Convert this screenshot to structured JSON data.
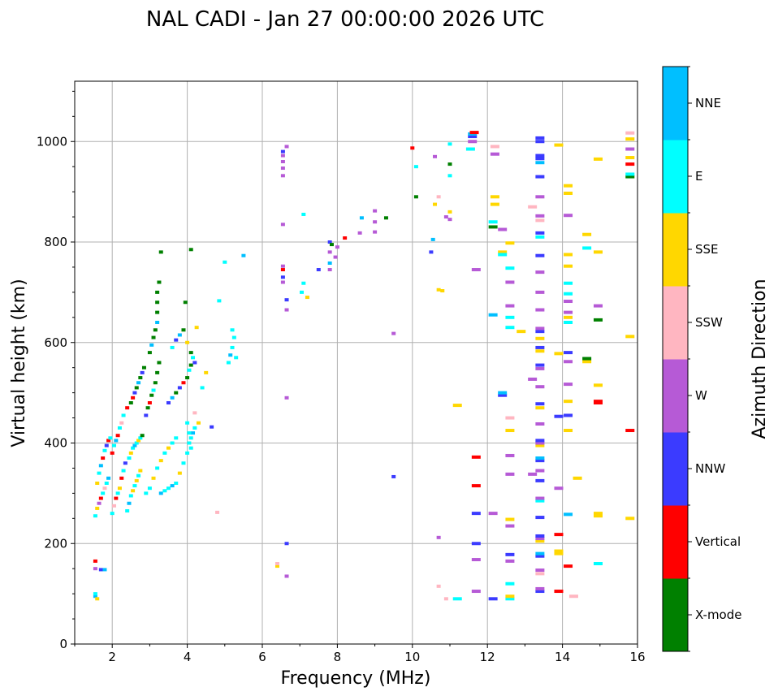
{
  "chart_data": {
    "type": "scatter",
    "title": "NAL CADI - Jan 27 00:00:00 2026 UTC",
    "xlabel": "Frequency (MHz)",
    "ylabel": "Virtual height (km)",
    "xlim": [
      1,
      16
    ],
    "ylim": [
      0,
      1120
    ],
    "xticks": [
      2,
      4,
      6,
      8,
      10,
      12,
      14,
      16
    ],
    "yticks": [
      0,
      200,
      400,
      600,
      800,
      1000
    ],
    "grid": true,
    "colorbar": {
      "label": "Azimuth Direction",
      "categories": [
        {
          "name": "X-mode",
          "color": "#008000"
        },
        {
          "name": "Vertical",
          "color": "#ff0000"
        },
        {
          "name": "NNW",
          "color": "#3b3bff"
        },
        {
          "name": "W",
          "color": "#b65ad6"
        },
        {
          "name": "SSW",
          "color": "#ffb6c1"
        },
        {
          "name": "SSE",
          "color": "#ffd700"
        },
        {
          "name": "E",
          "color": "#00ffff"
        },
        {
          "name": "NNE",
          "color": "#00bfff"
        }
      ]
    },
    "point_count_note": "columns [freq MHz, height km, category index]",
    "points": [
      [
        1.55,
        95,
        7
      ],
      [
        1.55,
        100,
        6
      ],
      [
        1.6,
        90,
        5
      ],
      [
        1.55,
        150,
        3
      ],
      [
        1.55,
        165,
        1
      ],
      [
        1.7,
        148,
        2
      ],
      [
        1.8,
        148,
        7
      ],
      [
        1.55,
        255,
        6
      ],
      [
        1.6,
        270,
        5
      ],
      [
        1.65,
        280,
        3
      ],
      [
        1.7,
        290,
        1
      ],
      [
        1.75,
        300,
        6
      ],
      [
        1.8,
        310,
        4
      ],
      [
        1.85,
        320,
        6
      ],
      [
        1.9,
        330,
        7
      ],
      [
        1.6,
        320,
        5
      ],
      [
        1.65,
        340,
        6
      ],
      [
        1.7,
        355,
        7
      ],
      [
        1.75,
        370,
        1
      ],
      [
        1.8,
        385,
        6
      ],
      [
        1.85,
        395,
        2
      ],
      [
        1.9,
        405,
        1
      ],
      [
        1.95,
        410,
        6
      ],
      [
        2.0,
        260,
        6
      ],
      [
        2.05,
        275,
        4
      ],
      [
        2.1,
        290,
        1
      ],
      [
        2.15,
        300,
        6
      ],
      [
        2.2,
        310,
        5
      ],
      [
        2.25,
        330,
        1
      ],
      [
        2.3,
        345,
        6
      ],
      [
        2.35,
        360,
        2
      ],
      [
        2.0,
        380,
        1
      ],
      [
        2.05,
        395,
        6
      ],
      [
        2.1,
        405,
        7
      ],
      [
        2.15,
        415,
        1
      ],
      [
        2.2,
        430,
        6
      ],
      [
        2.25,
        440,
        4
      ],
      [
        2.3,
        455,
        6
      ],
      [
        2.4,
        470,
        1
      ],
      [
        2.4,
        265,
        6
      ],
      [
        2.45,
        280,
        7
      ],
      [
        2.5,
        295,
        6
      ],
      [
        2.55,
        305,
        5
      ],
      [
        2.6,
        315,
        6
      ],
      [
        2.65,
        325,
        5
      ],
      [
        2.7,
        335,
        6
      ],
      [
        2.75,
        345,
        5
      ],
      [
        2.45,
        370,
        6
      ],
      [
        2.5,
        380,
        5
      ],
      [
        2.55,
        390,
        6
      ],
      [
        2.6,
        395,
        7
      ],
      [
        2.65,
        400,
        6
      ],
      [
        2.7,
        405,
        5
      ],
      [
        2.75,
        410,
        6
      ],
      [
        2.8,
        415,
        0
      ],
      [
        2.5,
        480,
        0
      ],
      [
        2.55,
        490,
        1
      ],
      [
        2.6,
        500,
        2
      ],
      [
        2.65,
        510,
        0
      ],
      [
        2.7,
        520,
        7
      ],
      [
        2.75,
        530,
        0
      ],
      [
        2.8,
        540,
        2
      ],
      [
        2.85,
        550,
        0
      ],
      [
        2.9,
        455,
        2
      ],
      [
        2.95,
        470,
        0
      ],
      [
        3.0,
        480,
        1
      ],
      [
        3.05,
        495,
        0
      ],
      [
        3.1,
        505,
        6
      ],
      [
        3.15,
        520,
        0
      ],
      [
        3.2,
        540,
        0
      ],
      [
        3.25,
        560,
        0
      ],
      [
        3.0,
        580,
        0
      ],
      [
        3.05,
        595,
        7
      ],
      [
        3.1,
        610,
        0
      ],
      [
        3.15,
        625,
        0
      ],
      [
        3.2,
        640,
        7
      ],
      [
        3.2,
        660,
        0
      ],
      [
        3.2,
        680,
        0
      ],
      [
        3.2,
        700,
        0
      ],
      [
        3.25,
        720,
        0
      ],
      [
        3.3,
        780,
        0
      ],
      [
        2.9,
        300,
        6
      ],
      [
        3.0,
        310,
        6
      ],
      [
        3.1,
        330,
        5
      ],
      [
        3.2,
        350,
        6
      ],
      [
        3.3,
        365,
        5
      ],
      [
        3.4,
        380,
        6
      ],
      [
        3.5,
        390,
        5
      ],
      [
        3.6,
        400,
        6
      ],
      [
        3.7,
        410,
        6
      ],
      [
        3.3,
        300,
        7
      ],
      [
        3.4,
        305,
        6
      ],
      [
        3.5,
        310,
        6
      ],
      [
        3.6,
        315,
        7
      ],
      [
        3.7,
        320,
        6
      ],
      [
        3.8,
        340,
        5
      ],
      [
        3.9,
        360,
        6
      ],
      [
        4.0,
        380,
        6
      ],
      [
        3.5,
        480,
        2
      ],
      [
        3.6,
        490,
        7
      ],
      [
        3.7,
        500,
        0
      ],
      [
        3.8,
        510,
        2
      ],
      [
        3.9,
        520,
        1
      ],
      [
        4.0,
        530,
        0
      ],
      [
        4.05,
        545,
        6
      ],
      [
        4.1,
        555,
        0
      ],
      [
        3.6,
        590,
        6
      ],
      [
        3.7,
        605,
        2
      ],
      [
        3.8,
        615,
        7
      ],
      [
        3.9,
        625,
        0
      ],
      [
        4.0,
        600,
        5
      ],
      [
        4.1,
        580,
        0
      ],
      [
        4.15,
        570,
        6
      ],
      [
        3.95,
        680,
        0
      ],
      [
        4.1,
        785,
        0
      ],
      [
        4.05,
        400,
        6
      ],
      [
        4.1,
        410,
        6
      ],
      [
        4.15,
        420,
        7
      ],
      [
        4.2,
        430,
        6
      ],
      [
        4.0,
        440,
        6
      ],
      [
        4.05,
        420,
        6
      ],
      [
        4.1,
        390,
        6
      ],
      [
        4.3,
        440,
        5
      ],
      [
        4.2,
        460,
        4
      ],
      [
        4.2,
        560,
        2
      ],
      [
        4.25,
        630,
        5
      ],
      [
        4.4,
        510,
        6
      ],
      [
        4.5,
        540,
        5
      ],
      [
        4.65,
        432,
        2
      ],
      [
        4.8,
        262,
        4
      ],
      [
        4.85,
        683,
        6
      ],
      [
        5.0,
        760,
        6
      ],
      [
        5.5,
        773,
        7
      ],
      [
        5.1,
        560,
        6
      ],
      [
        5.15,
        575,
        7
      ],
      [
        5.2,
        590,
        6
      ],
      [
        5.25,
        610,
        6
      ],
      [
        5.3,
        570,
        6
      ],
      [
        5.2,
        625,
        6
      ],
      [
        6.4,
        155,
        5
      ],
      [
        6.4,
        160,
        4
      ],
      [
        6.65,
        135,
        3
      ],
      [
        6.65,
        200,
        2
      ],
      [
        6.65,
        490,
        3
      ],
      [
        6.55,
        720,
        3
      ],
      [
        6.55,
        730,
        2
      ],
      [
        6.55,
        745,
        1
      ],
      [
        6.55,
        752,
        3
      ],
      [
        6.65,
        665,
        3
      ],
      [
        6.65,
        685,
        2
      ],
      [
        6.55,
        835,
        3
      ],
      [
        6.55,
        932,
        3
      ],
      [
        6.55,
        947,
        3
      ],
      [
        6.55,
        960,
        3
      ],
      [
        6.55,
        972,
        3
      ],
      [
        6.55,
        980,
        2
      ],
      [
        6.65,
        990,
        3
      ],
      [
        7.05,
        700,
        6
      ],
      [
        7.1,
        718,
        6
      ],
      [
        7.1,
        855,
        6
      ],
      [
        7.2,
        690,
        5
      ],
      [
        7.5,
        745,
        2
      ],
      [
        7.8,
        745,
        3
      ],
      [
        7.8,
        758,
        7
      ],
      [
        7.8,
        780,
        3
      ],
      [
        7.8,
        800,
        2
      ],
      [
        7.85,
        795,
        0
      ],
      [
        7.95,
        770,
        3
      ],
      [
        8.0,
        790,
        3
      ],
      [
        8.2,
        808,
        1
      ],
      [
        8.6,
        818,
        3
      ],
      [
        8.65,
        848,
        7
      ],
      [
        9.0,
        820,
        3
      ],
      [
        9.0,
        840,
        3
      ],
      [
        9.0,
        862,
        3
      ],
      [
        9.3,
        848,
        0
      ],
      [
        9.5,
        618,
        3
      ],
      [
        9.5,
        333,
        2
      ],
      [
        10.0,
        987,
        1
      ],
      [
        10.1,
        890,
        0
      ],
      [
        10.1,
        950,
        6
      ],
      [
        10.5,
        780,
        2
      ],
      [
        10.55,
        805,
        7
      ],
      [
        10.6,
        875,
        5
      ],
      [
        10.6,
        970,
        3
      ],
      [
        10.7,
        890,
        4
      ],
      [
        10.7,
        705,
        5
      ],
      [
        10.8,
        703,
        5
      ],
      [
        10.9,
        850,
        3
      ],
      [
        11.0,
        845,
        3
      ],
      [
        11.0,
        860,
        5
      ],
      [
        11.0,
        932,
        6
      ],
      [
        11.0,
        955,
        0
      ],
      [
        11.0,
        995,
        6
      ],
      [
        11.2,
        475,
        5
      ],
      [
        10.7,
        115,
        4
      ],
      [
        10.9,
        90,
        4
      ],
      [
        11.2,
        90,
        6
      ],
      [
        10.7,
        212,
        3
      ],
      [
        11.55,
        985,
        6
      ],
      [
        11.6,
        1000,
        3
      ],
      [
        11.6,
        1010,
        2
      ],
      [
        11.6,
        1015,
        7
      ],
      [
        11.65,
        1018,
        1
      ],
      [
        11.7,
        745,
        3
      ],
      [
        11.7,
        372,
        1
      ],
      [
        11.7,
        315,
        1
      ],
      [
        11.7,
        260,
        2
      ],
      [
        11.7,
        200,
        2
      ],
      [
        11.7,
        168,
        3
      ],
      [
        11.7,
        105,
        3
      ],
      [
        12.15,
        90,
        2
      ],
      [
        12.15,
        260,
        3
      ],
      [
        12.15,
        655,
        7
      ],
      [
        12.15,
        830,
        0
      ],
      [
        12.15,
        840,
        6
      ],
      [
        12.2,
        875,
        5
      ],
      [
        12.2,
        890,
        5
      ],
      [
        12.2,
        975,
        3
      ],
      [
        12.2,
        990,
        4
      ],
      [
        12.4,
        780,
        5
      ],
      [
        12.4,
        775,
        6
      ],
      [
        12.4,
        495,
        2
      ],
      [
        12.4,
        500,
        7
      ],
      [
        12.4,
        825,
        3
      ],
      [
        12.6,
        90,
        6
      ],
      [
        12.6,
        95,
        5
      ],
      [
        12.6,
        120,
        6
      ],
      [
        12.6,
        165,
        3
      ],
      [
        12.6,
        178,
        2
      ],
      [
        12.6,
        235,
        3
      ],
      [
        12.6,
        248,
        5
      ],
      [
        12.6,
        338,
        3
      ],
      [
        12.6,
        375,
        3
      ],
      [
        12.6,
        425,
        5
      ],
      [
        12.6,
        450,
        4
      ],
      [
        12.6,
        630,
        6
      ],
      [
        12.6,
        650,
        6
      ],
      [
        12.6,
        673,
        3
      ],
      [
        12.6,
        720,
        3
      ],
      [
        12.6,
        748,
        6
      ],
      [
        12.6,
        798,
        5
      ],
      [
        12.9,
        622,
        5
      ],
      [
        13.2,
        338,
        3
      ],
      [
        13.2,
        527,
        3
      ],
      [
        13.2,
        870,
        4
      ],
      [
        13.4,
        105,
        2
      ],
      [
        13.4,
        110,
        3
      ],
      [
        13.4,
        140,
        4
      ],
      [
        13.4,
        147,
        3
      ],
      [
        13.4,
        175,
        2
      ],
      [
        13.4,
        180,
        7
      ],
      [
        13.4,
        205,
        5
      ],
      [
        13.4,
        210,
        3
      ],
      [
        13.4,
        215,
        2
      ],
      [
        13.4,
        252,
        2
      ],
      [
        13.4,
        285,
        6
      ],
      [
        13.4,
        290,
        3
      ],
      [
        13.4,
        325,
        2
      ],
      [
        13.4,
        345,
        3
      ],
      [
        13.4,
        365,
        2
      ],
      [
        13.4,
        370,
        7
      ],
      [
        13.4,
        395,
        5
      ],
      [
        13.4,
        400,
        3
      ],
      [
        13.4,
        405,
        2
      ],
      [
        13.4,
        438,
        3
      ],
      [
        13.4,
        470,
        5
      ],
      [
        13.4,
        478,
        2
      ],
      [
        13.4,
        512,
        3
      ],
      [
        13.4,
        548,
        3
      ],
      [
        13.4,
        555,
        2
      ],
      [
        13.4,
        583,
        5
      ],
      [
        13.4,
        590,
        2
      ],
      [
        13.4,
        608,
        5
      ],
      [
        13.4,
        622,
        2
      ],
      [
        13.4,
        628,
        3
      ],
      [
        13.4,
        665,
        3
      ],
      [
        13.4,
        700,
        3
      ],
      [
        13.4,
        740,
        3
      ],
      [
        13.4,
        773,
        2
      ],
      [
        13.4,
        810,
        6
      ],
      [
        13.4,
        818,
        2
      ],
      [
        13.4,
        843,
        4
      ],
      [
        13.4,
        852,
        3
      ],
      [
        13.4,
        890,
        3
      ],
      [
        13.4,
        930,
        2
      ],
      [
        13.4,
        958,
        7
      ],
      [
        13.4,
        966,
        2
      ],
      [
        13.4,
        972,
        2
      ],
      [
        13.4,
        1000,
        2
      ],
      [
        13.4,
        1007,
        2
      ],
      [
        13.9,
        105,
        1
      ],
      [
        13.9,
        218,
        1
      ],
      [
        13.9,
        180,
        5
      ],
      [
        13.9,
        185,
        5
      ],
      [
        13.9,
        310,
        3
      ],
      [
        13.9,
        453,
        2
      ],
      [
        13.9,
        578,
        5
      ],
      [
        13.9,
        993,
        5
      ],
      [
        14.15,
        155,
        1
      ],
      [
        14.15,
        258,
        7
      ],
      [
        14.15,
        425,
        5
      ],
      [
        14.15,
        455,
        2
      ],
      [
        14.15,
        483,
        5
      ],
      [
        14.15,
        517,
        3
      ],
      [
        14.15,
        562,
        3
      ],
      [
        14.15,
        580,
        2
      ],
      [
        14.15,
        640,
        6
      ],
      [
        14.15,
        650,
        5
      ],
      [
        14.15,
        660,
        3
      ],
      [
        14.15,
        682,
        3
      ],
      [
        14.15,
        697,
        6
      ],
      [
        14.15,
        718,
        6
      ],
      [
        14.15,
        752,
        5
      ],
      [
        14.15,
        775,
        5
      ],
      [
        14.15,
        853,
        3
      ],
      [
        14.15,
        897,
        5
      ],
      [
        14.15,
        912,
        5
      ],
      [
        14.3,
        95,
        4
      ],
      [
        14.4,
        330,
        5
      ],
      [
        14.65,
        562,
        5
      ],
      [
        14.65,
        568,
        0
      ],
      [
        14.65,
        815,
        5
      ],
      [
        14.65,
        788,
        6
      ],
      [
        14.95,
        255,
        5
      ],
      [
        14.95,
        260,
        5
      ],
      [
        14.95,
        160,
        6
      ],
      [
        14.95,
        480,
        1
      ],
      [
        14.95,
        483,
        1
      ],
      [
        14.95,
        515,
        5
      ],
      [
        14.95,
        645,
        0
      ],
      [
        14.95,
        673,
        3
      ],
      [
        14.95,
        780,
        5
      ],
      [
        14.95,
        965,
        5
      ],
      [
        15.8,
        250,
        5
      ],
      [
        15.8,
        425,
        1
      ],
      [
        15.8,
        612,
        5
      ],
      [
        15.8,
        930,
        0
      ],
      [
        15.8,
        935,
        6
      ],
      [
        15.8,
        955,
        1
      ],
      [
        15.8,
        968,
        5
      ],
      [
        15.8,
        985,
        3
      ],
      [
        15.8,
        1005,
        5
      ],
      [
        15.8,
        1017,
        4
      ]
    ]
  }
}
